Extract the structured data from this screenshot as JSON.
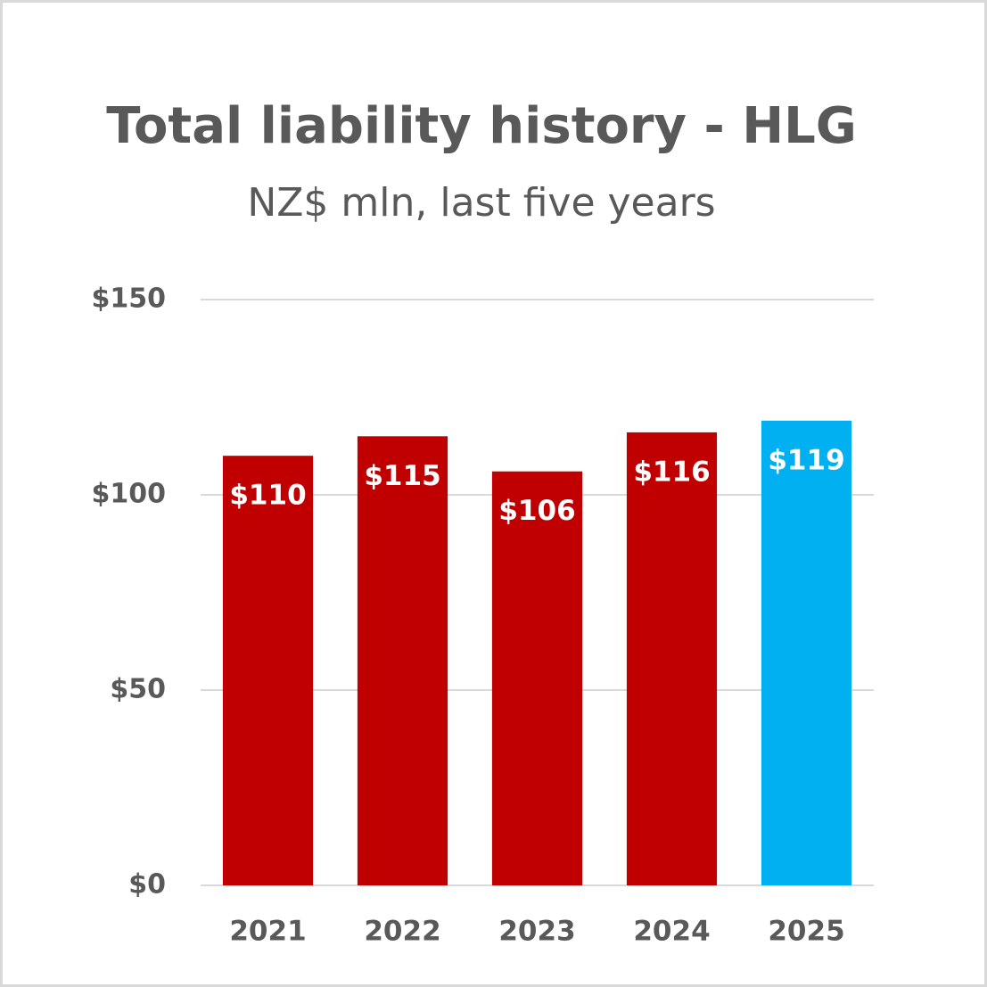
{
  "chart_data": {
    "type": "bar",
    "title": "Total liability history - HLG",
    "subtitle": "NZ$ mln, last five years",
    "categories": [
      "2021",
      "2022",
      "2023",
      "2024",
      "2025"
    ],
    "values": [
      110,
      115,
      106,
      116,
      119
    ],
    "value_labels": [
      "$110",
      "$115",
      "$106",
      "$116",
      "$119"
    ],
    "colors": [
      "#c00000",
      "#c00000",
      "#c00000",
      "#c00000",
      "#00b0f0"
    ],
    "ylim": [
      0,
      150
    ],
    "yticks": [
      {
        "value": 0,
        "label": "$0"
      },
      {
        "value": 50,
        "label": "$50"
      },
      {
        "value": 100,
        "label": "$100"
      },
      {
        "value": 150,
        "label": "$150"
      }
    ],
    "grid": true
  }
}
